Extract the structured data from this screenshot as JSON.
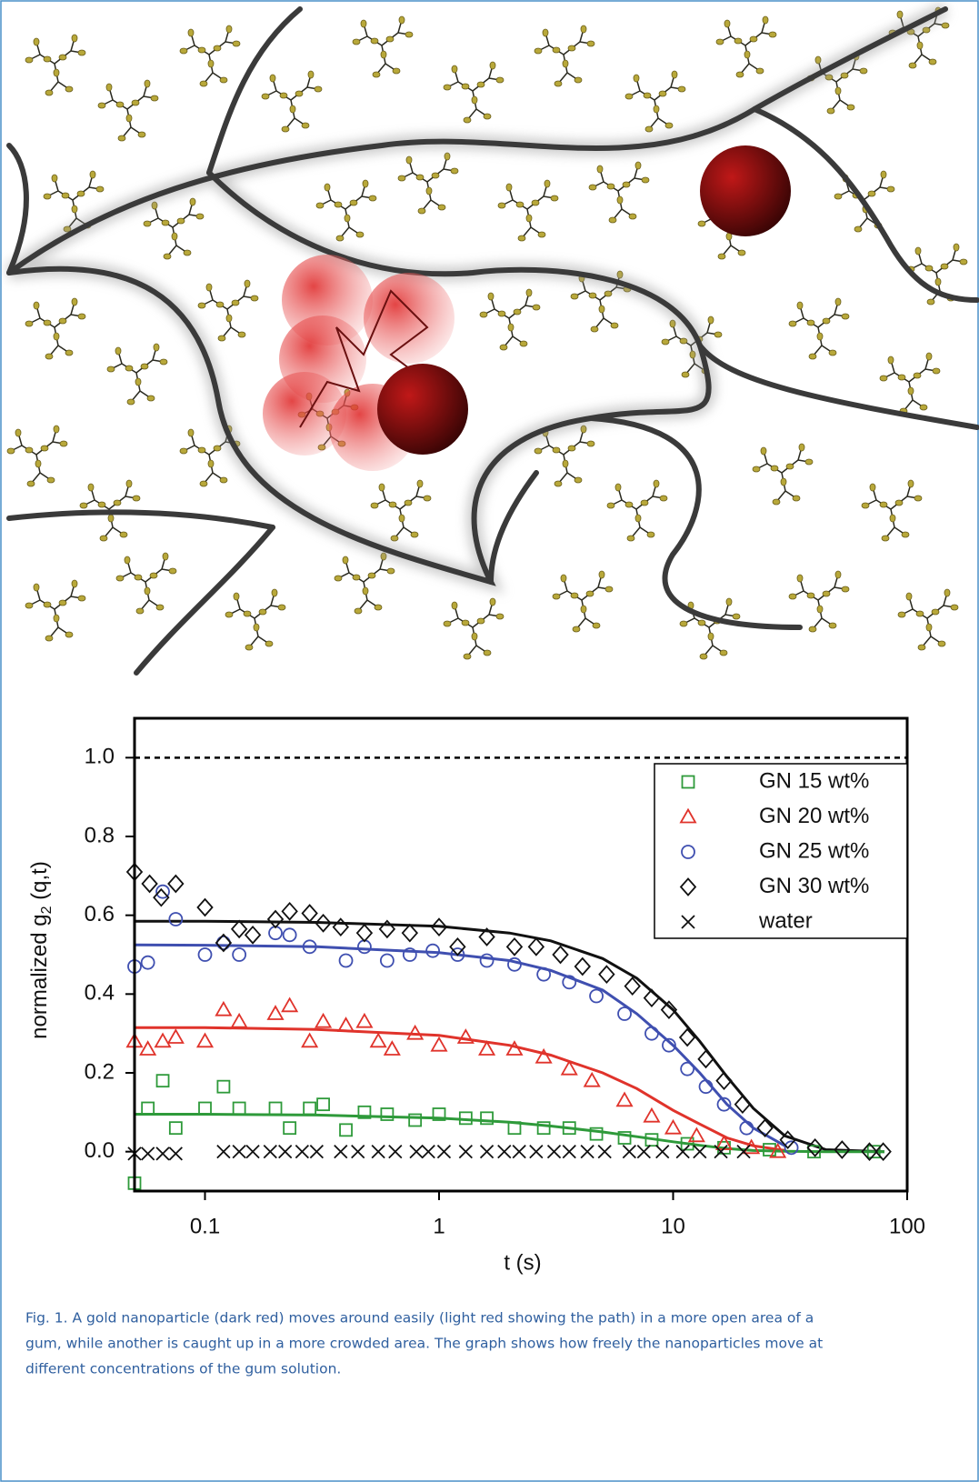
{
  "chart_data": {
    "type": "scatter",
    "xlabel": "t (s)",
    "ylabel": {
      "text": "normalized g",
      "sub": "2",
      "rest": " (q,t)"
    },
    "xscale": "log",
    "xlim": [
      0.05,
      100
    ],
    "ylim": [
      -0.1,
      1.1
    ],
    "xticks": [
      0.1,
      1,
      10,
      100
    ],
    "yticks": [
      {
        "value": 0,
        "label": "0.0"
      },
      0.2,
      0.4,
      0.6,
      0.8,
      {
        "value": 1,
        "label": "1.0"
      }
    ],
    "reference_line": 1,
    "legend": "upper right",
    "series": [
      {
        "name": "GN 15 wt%",
        "color": "#2e9a3a",
        "marker": "square",
        "x": [
          0.05,
          0.057,
          0.066,
          0.075,
          0.1,
          0.12,
          0.14,
          0.2,
          0.23,
          0.28,
          0.32,
          0.4,
          0.48,
          0.6,
          0.79,
          1.0,
          1.3,
          1.6,
          2.1,
          2.8,
          3.6,
          4.7,
          6.2,
          8.1,
          11.5,
          16.5,
          25.8,
          40,
          72
        ],
        "values": [
          -0.08,
          0.11,
          0.18,
          0.06,
          0.11,
          0.165,
          0.11,
          0.11,
          0.06,
          0.11,
          0.12,
          0.055,
          0.1,
          0.095,
          0.08,
          0.095,
          0.085,
          0.085,
          0.06,
          0.06,
          0.06,
          0.045,
          0.035,
          0.03,
          0.02,
          0.01,
          0.005,
          0,
          0
        ]
      },
      {
        "name": "GN 20 wt%",
        "color": "#e0332b",
        "marker": "triangle",
        "x": [
          0.05,
          0.057,
          0.066,
          0.075,
          0.1,
          0.12,
          0.14,
          0.2,
          0.23,
          0.28,
          0.32,
          0.4,
          0.48,
          0.55,
          0.63,
          0.79,
          1.0,
          1.3,
          1.6,
          2.1,
          2.8,
          3.6,
          4.5,
          6.2,
          8.1,
          10,
          12.6,
          16.5,
          21.6,
          28
        ],
        "values": [
          0.28,
          0.26,
          0.28,
          0.29,
          0.28,
          0.36,
          0.33,
          0.35,
          0.37,
          0.28,
          0.33,
          0.32,
          0.33,
          0.28,
          0.26,
          0.3,
          0.27,
          0.29,
          0.26,
          0.26,
          0.24,
          0.21,
          0.18,
          0.13,
          0.09,
          0.06,
          0.04,
          0.02,
          0.01,
          0
        ]
      },
      {
        "name": "GN 25 wt%",
        "color": "#3f4fb0",
        "marker": "circle",
        "x": [
          0.05,
          0.057,
          0.066,
          0.075,
          0.1,
          0.12,
          0.14,
          0.2,
          0.23,
          0.28,
          0.4,
          0.48,
          0.6,
          0.75,
          0.94,
          1.2,
          1.6,
          2.1,
          2.8,
          3.6,
          4.7,
          6.2,
          8.1,
          9.6,
          11.5,
          13.8,
          16.5,
          20.6,
          32
        ],
        "values": [
          0.47,
          0.48,
          0.66,
          0.59,
          0.5,
          0.53,
          0.5,
          0.555,
          0.55,
          0.52,
          0.485,
          0.52,
          0.485,
          0.5,
          0.51,
          0.5,
          0.485,
          0.475,
          0.45,
          0.43,
          0.395,
          0.35,
          0.3,
          0.27,
          0.21,
          0.165,
          0.12,
          0.06,
          0.01
        ]
      },
      {
        "name": "GN 30 wt%",
        "color": "#111111",
        "marker": "diamond",
        "x": [
          0.05,
          0.058,
          0.065,
          0.075,
          0.1,
          0.12,
          0.14,
          0.16,
          0.2,
          0.23,
          0.28,
          0.32,
          0.38,
          0.48,
          0.6,
          0.75,
          1.0,
          1.2,
          1.6,
          2.1,
          2.6,
          3.3,
          4.1,
          5.2,
          6.7,
          8.1,
          9.6,
          11.5,
          13.8,
          16.5,
          19.8,
          24.7,
          30.9,
          40.4,
          52.7,
          69,
          79
        ],
        "values": [
          0.71,
          0.68,
          0.645,
          0.68,
          0.62,
          0.53,
          0.565,
          0.55,
          0.59,
          0.61,
          0.605,
          0.58,
          0.57,
          0.555,
          0.565,
          0.555,
          0.57,
          0.52,
          0.545,
          0.52,
          0.52,
          0.5,
          0.47,
          0.45,
          0.42,
          0.39,
          0.36,
          0.29,
          0.235,
          0.18,
          0.12,
          0.06,
          0.03,
          0.01,
          0.005,
          0,
          0
        ]
      },
      {
        "name": "water",
        "color": "#111111",
        "marker": "cross",
        "x": [
          0.05,
          0.057,
          0.066,
          0.075,
          0.12,
          0.14,
          0.16,
          0.19,
          0.22,
          0.26,
          0.3,
          0.38,
          0.45,
          0.55,
          0.65,
          0.8,
          0.9,
          1.05,
          1.3,
          1.6,
          1.9,
          2.2,
          2.6,
          3.1,
          3.6,
          4.3,
          5.1,
          6.5,
          7.5,
          9,
          11,
          13,
          16,
          20
        ],
        "values": [
          -0.005,
          -0.005,
          -0.005,
          -0.005,
          0,
          0,
          0,
          0,
          0,
          0,
          0,
          0,
          0,
          0,
          0,
          0,
          0,
          0,
          0,
          0,
          0,
          0,
          0,
          0,
          0,
          0,
          0,
          0,
          0,
          0,
          0,
          0,
          0,
          0
        ]
      }
    ],
    "fits": [
      {
        "color": "#111111",
        "x": [
          0.05,
          0.1,
          0.3,
          1,
          2,
          3,
          5,
          7,
          10,
          13,
          17,
          22,
          30,
          45,
          80
        ],
        "values": [
          0.585,
          0.585,
          0.582,
          0.572,
          0.555,
          0.535,
          0.49,
          0.44,
          0.36,
          0.28,
          0.19,
          0.11,
          0.04,
          0.005,
          0
        ]
      },
      {
        "color": "#3f4fb0",
        "x": [
          0.05,
          0.1,
          0.3,
          1,
          2,
          3,
          5,
          7,
          10,
          13,
          17,
          22,
          30
        ],
        "values": [
          0.525,
          0.524,
          0.52,
          0.505,
          0.485,
          0.46,
          0.41,
          0.35,
          0.27,
          0.2,
          0.12,
          0.06,
          0.015
        ]
      },
      {
        "color": "#e0332b",
        "x": [
          0.05,
          0.1,
          0.3,
          1,
          2,
          3,
          5,
          7,
          10,
          13,
          17,
          22,
          30
        ],
        "values": [
          0.315,
          0.315,
          0.31,
          0.295,
          0.27,
          0.245,
          0.2,
          0.16,
          0.105,
          0.07,
          0.035,
          0.015,
          0.003
        ]
      },
      {
        "color": "#2e9a3a",
        "x": [
          0.05,
          0.1,
          0.3,
          1,
          2,
          3,
          5,
          7,
          10,
          13,
          17,
          22,
          30,
          45,
          80
        ],
        "values": [
          0.095,
          0.095,
          0.093,
          0.085,
          0.075,
          0.065,
          0.05,
          0.038,
          0.025,
          0.016,
          0.008,
          0.003,
          0.001,
          0,
          0
        ]
      }
    ]
  },
  "caption": [
    "Fig. 1. A gold nanoparticle (dark red) moves around easily (light red showing the path) in a more open area of a",
    "gum, while another is caught up in a more crowded area. The graph shows how freely the nanoparticles move at",
    "different concentrations of the gum solution."
  ]
}
